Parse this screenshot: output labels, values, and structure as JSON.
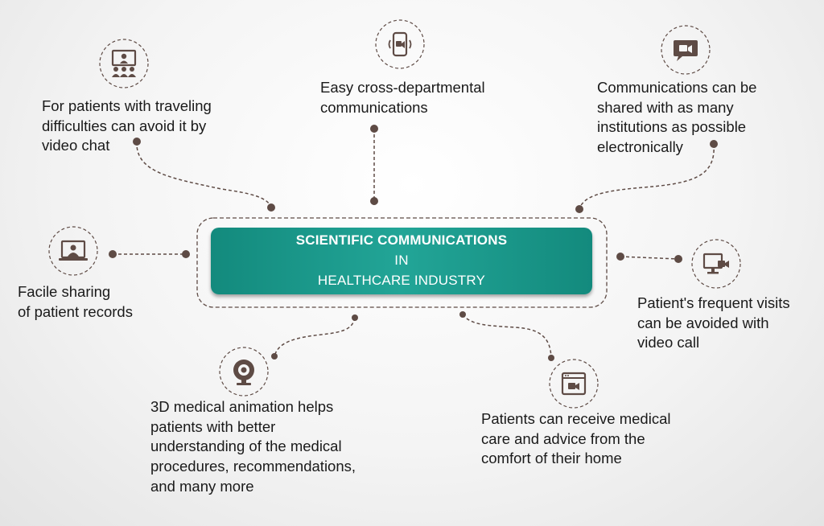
{
  "title": {
    "line1": "SCIENTIFIC COMMUNICATIONS",
    "line2": "IN",
    "line3": "HEALTHCARE INDUSTRY"
  },
  "colors": {
    "accent": "#1a9a8c",
    "connector": "#5e4b45",
    "text": "#1a1a1a"
  },
  "nodes": [
    {
      "icon": "video-conference-icon",
      "lines": [
        "For patients with traveling",
        "difficulties can avoid it by",
        "video chat"
      ]
    },
    {
      "icon": "mobile-video-call-icon",
      "lines": [
        "Easy cross-departmental",
        "communications"
      ]
    },
    {
      "icon": "video-chat-bubble-icon",
      "lines": [
        "Communications can be",
        "shared with as many",
        "institutions as possible",
        "electronically"
      ]
    },
    {
      "icon": "laptop-user-icon",
      "lines": [
        "Facile sharing",
        "of patient records"
      ]
    },
    {
      "icon": "desktop-video-icon",
      "lines": [
        "Patient's frequent visits",
        "can be avoided with",
        "video call"
      ]
    },
    {
      "icon": "webcam-icon",
      "lines": [
        "3D medical animation helps",
        "patients with better",
        "understanding of the medical",
        "procedures, recommendations,",
        "and many more"
      ]
    },
    {
      "icon": "browser-video-icon",
      "lines": [
        "Patients can receive medical",
        "care and advice from the",
        "comfort of their home"
      ]
    }
  ]
}
